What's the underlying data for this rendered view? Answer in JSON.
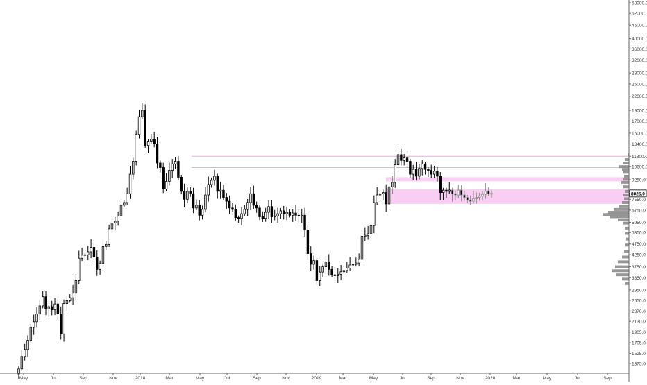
{
  "chart_data": {
    "type": "candlestick",
    "title": "",
    "xlabel": "",
    "ylabel": "",
    "y_scale": "log",
    "ylim": [
      1200,
      62000
    ],
    "grid": false,
    "candle_color_up": "#ffffff",
    "candle_color_down": "#000000",
    "candle_border": "#000000",
    "zone_color": "#f9c6f0",
    "line_color": "#f3a6e6",
    "volume_profile_color": "#8c8c8c",
    "current_price_label": "8025.0",
    "x_ticks": [
      "May",
      "Jul",
      "Sep",
      "Nov",
      "2018",
      "Mar",
      "May",
      "Jul",
      "Sep",
      "Nov",
      "2019",
      "Mar",
      "May",
      "Jul",
      "Sep",
      "Nov",
      "2020",
      "Mar",
      "May",
      "Jul",
      "Sep"
    ],
    "y_ticks": [
      "58000.0",
      "52000.0",
      "46000.0",
      "40000.0",
      "36000.0",
      "32000.0",
      "28000.0",
      "25000.0",
      "22000.0",
      "19000.0",
      "17000.0",
      "15000.0",
      "13400.0",
      "11800.0",
      "10600.0",
      "9250.0",
      "8025.0",
      "7550.0",
      "6750.0",
      "5950.0",
      "5350.0",
      "4750.0",
      "4250.0",
      "3750.0",
      "3350.0",
      "2950.0",
      "2650.0",
      "2370.0",
      "2130.0",
      "1905.0",
      "1705.0",
      "1525.0",
      "1375.0"
    ],
    "y_tick_values": [
      58000,
      52000,
      46000,
      40000,
      36000,
      32000,
      28000,
      25000,
      22000,
      19000,
      17000,
      15000,
      13400,
      11800,
      10600,
      9250,
      8025,
      7550,
      6750,
      5950,
      5350,
      4750,
      4250,
      3750,
      3350,
      2950,
      2650,
      2370,
      2130,
      1905,
      1705,
      1525,
      1375
    ],
    "horizontal_lines": [
      11800,
      10500
    ],
    "horizontal_zones": [
      [
        9100,
        9500
      ],
      [
        7200,
        8400
      ]
    ],
    "series": [
      {
        "name": "",
        "closes": [
          1300,
          1480,
          1590,
          1750,
          2000,
          2120,
          2300,
          2500,
          2750,
          2420,
          2480,
          2400,
          2550,
          2300,
          1870,
          2560,
          2640,
          2720,
          2850,
          3250,
          4100,
          4230,
          4250,
          4380,
          4590,
          4150,
          3650,
          3880,
          4630,
          4730,
          5560,
          5900,
          6020,
          6350,
          7100,
          7300,
          8000,
          9800,
          11200,
          14800,
          17800,
          19000,
          13200,
          13800,
          14100,
          13400,
          11000,
          10500,
          8400,
          9100,
          10200,
          10900,
          11200,
          9500,
          8200,
          7550,
          8200,
          8000,
          6900,
          7100,
          6400,
          6800,
          7900,
          8800,
          9200,
          9600,
          8200,
          8300,
          7700,
          7400,
          6900,
          6800,
          6250,
          6200,
          6500,
          6800,
          7300,
          8000,
          7100,
          6900,
          6300,
          6200,
          6600,
          7000,
          6300,
          6350,
          6500,
          6700,
          6500,
          6600,
          6400,
          6550,
          6400,
          6350,
          6400,
          5500,
          4300,
          3850,
          4000,
          3250,
          3550,
          3750,
          3950,
          3650,
          3450,
          3420,
          3470,
          3560,
          3610,
          3700,
          3820,
          3850,
          3900,
          4050,
          5150,
          5200,
          5280,
          5750,
          7300,
          7900,
          8000,
          8100,
          7200,
          8600,
          9000,
          10800,
          12000,
          11300,
          11600,
          11200,
          9800,
          10300,
          9600,
          10400,
          10900,
          10300,
          10200,
          9800,
          10100,
          9600,
          8100,
          8300,
          8200,
          8300,
          8000,
          7900,
          8300,
          7900,
          7700,
          7500,
          7400,
          7600,
          7700,
          7800,
          7950,
          8200,
          8000,
          8025
        ]
      }
    ]
  }
}
